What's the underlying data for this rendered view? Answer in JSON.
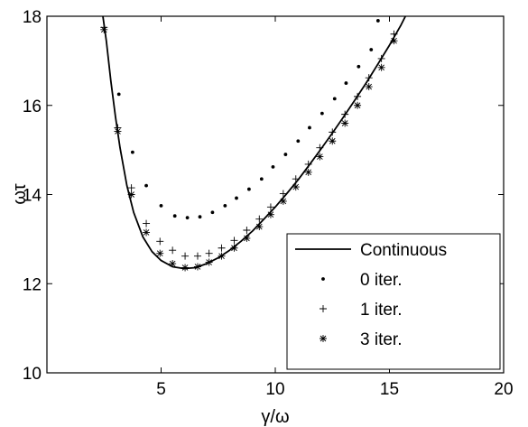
{
  "chart_data": {
    "type": "line",
    "title": "",
    "xlabel": "γ/ω",
    "ylabel": "ωτ",
    "xlim": [
      0,
      20
    ],
    "ylim": [
      10,
      18
    ],
    "xticks": [
      5,
      10,
      15,
      20
    ],
    "yticks": [
      10,
      12,
      14,
      16,
      18
    ],
    "grid": false,
    "legend_position": "bottom-right",
    "series": [
      {
        "name": "Continuous",
        "style": "solid-line",
        "x": [
          2.45,
          2.6,
          2.8,
          3.0,
          3.2,
          3.5,
          3.8,
          4.2,
          4.6,
          5.0,
          5.5,
          6.0,
          6.5,
          7.0,
          7.5,
          8.0,
          8.5,
          9.0,
          9.5,
          10.0,
          10.5,
          11.0,
          11.5,
          12.0,
          12.5,
          13.0,
          13.5,
          14.0,
          14.5,
          15.0,
          15.5,
          15.7
        ],
        "y": [
          18.0,
          17.45,
          16.55,
          15.75,
          15.05,
          14.2,
          13.6,
          13.05,
          12.72,
          12.52,
          12.38,
          12.34,
          12.36,
          12.45,
          12.58,
          12.75,
          12.95,
          13.18,
          13.45,
          13.72,
          14.02,
          14.33,
          14.67,
          15.02,
          15.38,
          15.75,
          16.13,
          16.52,
          16.93,
          17.35,
          17.8,
          18.0
        ]
      },
      {
        "name": "0 iter.",
        "style": "dot",
        "x": [
          3.15,
          3.75,
          4.35,
          5.0,
          5.6,
          6.15,
          6.7,
          7.25,
          7.8,
          8.3,
          8.85,
          9.4,
          9.9,
          10.45,
          11.0,
          11.5,
          12.05,
          12.6,
          13.1,
          13.65,
          14.2,
          14.5
        ],
        "y": [
          16.25,
          14.95,
          14.2,
          13.75,
          13.52,
          13.48,
          13.5,
          13.6,
          13.75,
          13.92,
          14.12,
          14.35,
          14.62,
          14.9,
          15.2,
          15.5,
          15.82,
          16.15,
          16.5,
          16.87,
          17.25,
          17.9
        ]
      },
      {
        "name": "1 iter.",
        "style": "plus",
        "x": [
          2.5,
          3.1,
          3.7,
          4.35,
          4.95,
          5.5,
          6.05,
          6.6,
          7.1,
          7.65,
          8.2,
          8.75,
          9.3,
          9.8,
          10.35,
          10.9,
          11.45,
          11.95,
          12.5,
          13.05,
          13.6,
          14.1,
          14.65,
          15.2
        ],
        "y": [
          17.75,
          15.5,
          14.15,
          13.35,
          12.95,
          12.75,
          12.62,
          12.62,
          12.68,
          12.8,
          12.97,
          13.2,
          13.45,
          13.72,
          14.02,
          14.35,
          14.68,
          15.05,
          15.4,
          15.8,
          16.2,
          16.62,
          17.05,
          17.6
        ]
      },
      {
        "name": "3 iter.",
        "style": "asterisk",
        "x": [
          2.5,
          3.1,
          3.7,
          4.35,
          4.95,
          5.5,
          6.05,
          6.6,
          7.1,
          7.65,
          8.2,
          8.75,
          9.3,
          9.8,
          10.35,
          10.9,
          11.45,
          11.95,
          12.5,
          13.05,
          13.6,
          14.1,
          14.65,
          15.2
        ],
        "y": [
          17.7,
          15.42,
          14.0,
          13.15,
          12.68,
          12.45,
          12.36,
          12.38,
          12.48,
          12.62,
          12.8,
          13.02,
          13.28,
          13.55,
          13.85,
          14.17,
          14.5,
          14.85,
          15.2,
          15.6,
          16.0,
          16.42,
          16.85,
          17.45
        ]
      }
    ]
  }
}
